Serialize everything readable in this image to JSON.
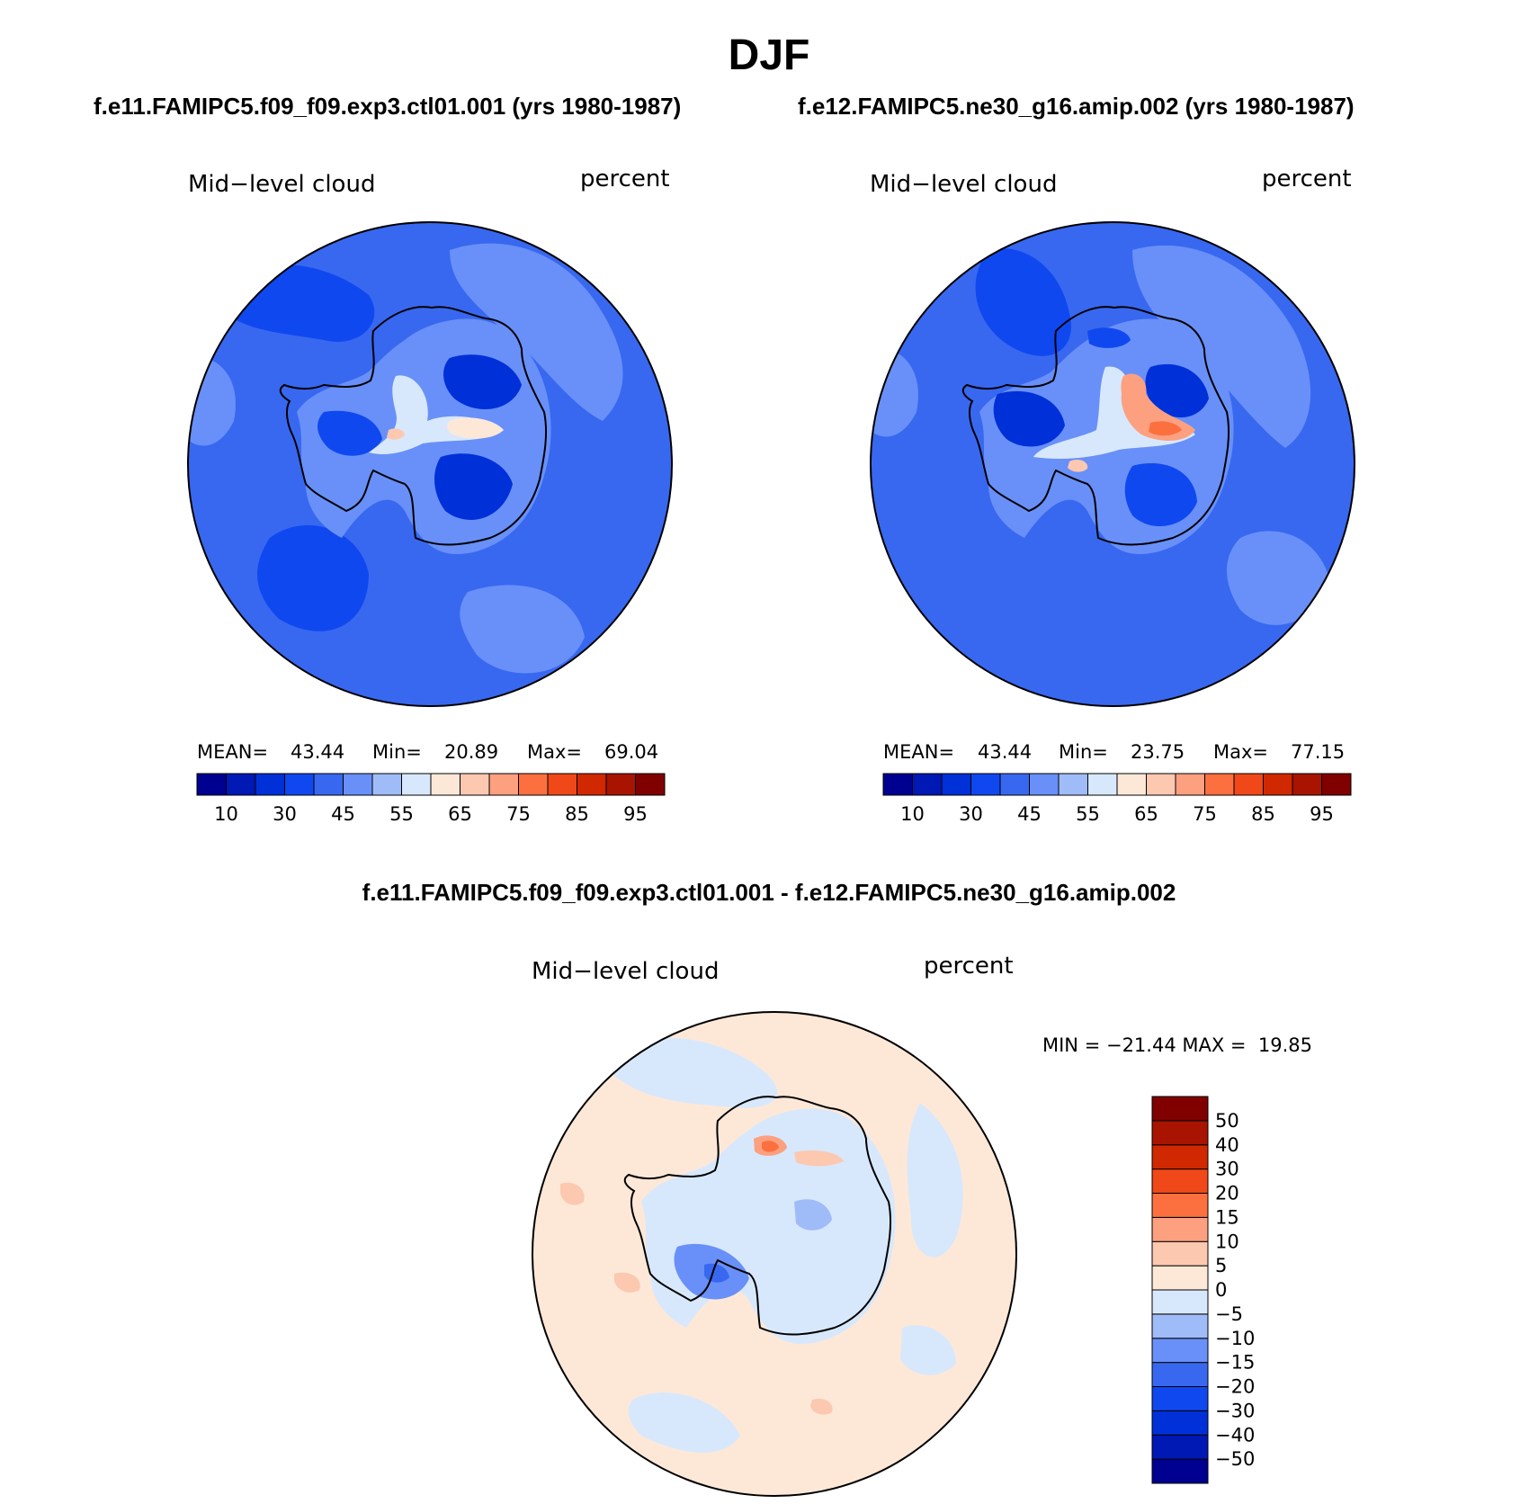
{
  "title": "DJF",
  "panels": [
    {
      "subtitle": "f.e11.FAMIPC5.f09_f09.exp3.ctl01.001 (yrs 1980-1987)",
      "variable": "Mid−level cloud",
      "units": "percent",
      "stats": {
        "mean_label": "MEAN=",
        "mean": "43.44",
        "min_label": "Min=",
        "min": "20.89",
        "max_label": "Max=",
        "max": "69.04"
      }
    },
    {
      "subtitle": "f.e12.FAMIPC5.ne30_g16.amip.002 (yrs 1980-1987)",
      "variable": "Mid−level cloud",
      "units": "percent",
      "stats": {
        "mean_label": "MEAN=",
        "mean": "43.44",
        "min_label": "Min=",
        "min": "23.75",
        "max_label": "Max=",
        "max": "77.15"
      }
    },
    {
      "subtitle": "f.e11.FAMIPC5.f09_f09.exp3.ctl01.001 - f.e12.FAMIPC5.ne30_g16.amip.002",
      "variable": "Mid−level cloud",
      "units": "percent",
      "minmax_text": "MIN = −21.44 MAX =  19.85"
    }
  ],
  "colorbar_top": {
    "colors": [
      "#000090",
      "#0018b4",
      "#0030d8",
      "#1048f0",
      "#3868f0",
      "#6890f8",
      "#a0bcf8",
      "#d8e8fc",
      "#fde8d8",
      "#fcc8b0",
      "#fca080",
      "#fc7040",
      "#f04818",
      "#d02800",
      "#a81400",
      "#800000"
    ],
    "ticks": [
      "10",
      "30",
      "45",
      "55",
      "65",
      "75",
      "85",
      "95"
    ]
  },
  "colorbar_diff": {
    "colors": [
      "#000090",
      "#0018b4",
      "#0030d8",
      "#1048f0",
      "#3868f0",
      "#6890f8",
      "#a0bcf8",
      "#d8e8fc",
      "#fde8d8",
      "#fcc8b0",
      "#fca080",
      "#fc7040",
      "#f04818",
      "#d02800",
      "#a81400",
      "#800000"
    ],
    "ticks": [
      "−50",
      "−40",
      "−30",
      "−20",
      "−15",
      "−10",
      "−5",
      "0",
      "5",
      "10",
      "15",
      "20",
      "30",
      "40",
      "50"
    ]
  }
}
